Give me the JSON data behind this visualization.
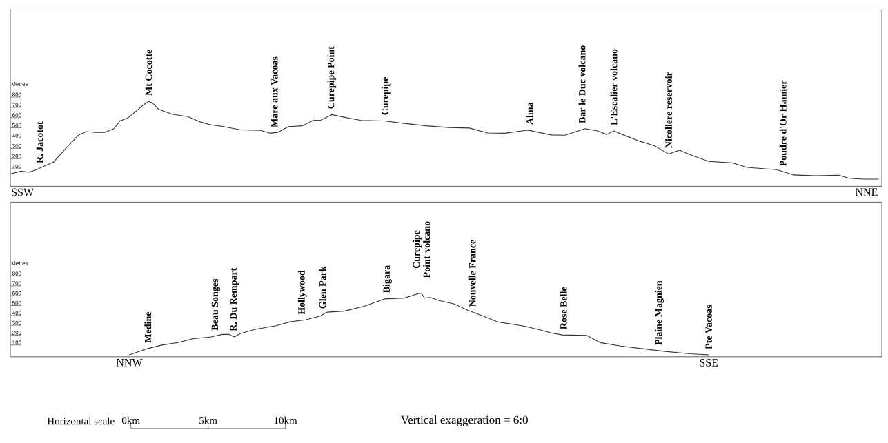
{
  "chart_data": [
    {
      "type": "line",
      "color": "#333333",
      "ylabel": "Metres",
      "ylim": [
        -70,
        1650
      ],
      "yticks": [
        100,
        200,
        300,
        400,
        500,
        600,
        700,
        800
      ],
      "xlim": [
        -7.8,
        48.6
      ],
      "tick_labels": "y",
      "x": [
        -7.8,
        -7.1,
        -6.6,
        -6.1,
        -5.5,
        -5.0,
        -4.2,
        -3.4,
        -2.9,
        -2.3,
        -1.7,
        -1.1,
        -0.7,
        -0.2,
        0.4,
        0.8,
        1.15,
        1.4,
        1.8,
        2.7,
        3.7,
        4.4,
        5.1,
        6.0,
        7.1,
        8.4,
        9.0,
        9.5,
        10.2,
        11.1,
        11.8,
        12.3,
        13.0,
        13.8,
        14.9,
        16.4,
        17.6,
        19.1,
        20.6,
        21.9,
        23.1,
        24.2,
        25.7,
        27.2,
        28.1,
        29.4,
        30.2,
        30.8,
        31.25,
        31.8,
        32.9,
        33.9,
        34.8,
        35.5,
        36.3,
        37.4,
        38.9,
        39.9,
        41.8,
        42.9,
        44.3,
        45.8,
        46.5,
        47.4,
        48.4
      ],
      "values": [
        50,
        78,
        67,
        92,
        134,
        167,
        302,
        428,
        464,
        456,
        456,
        492,
        568,
        596,
        671,
        722,
        758,
        744,
        680,
        632,
        610,
        562,
        532,
        512,
        481,
        475,
        448,
        456,
        512,
        520,
        573,
        576,
        629,
        604,
        573,
        568,
        545,
        520,
        503,
        498,
        450,
        448,
        478,
        431,
        428,
        492,
        470,
        436,
        470,
        436,
        372,
        324,
        246,
        282,
        232,
        173,
        159,
        114,
        92,
        41,
        33,
        38,
        8,
        0,
        0
      ],
      "annotations": [
        {
          "text": "R. Jacotot",
          "x": -5.9,
          "y": 100
        },
        {
          "text": "Mt Cocotte",
          "x": 1.15,
          "y": 758
        },
        {
          "text": "Mare aux Vacoas",
          "x": 9.3,
          "y": 450
        },
        {
          "text": "Curepipe Point",
          "x": 13.0,
          "y": 629
        },
        {
          "text": "Curepipe",
          "x": 16.5,
          "y": 568
        },
        {
          "text": "Alma",
          "x": 25.8,
          "y": 475
        },
        {
          "text": "Bar le Duc volcano",
          "x": 29.2,
          "y": 490
        },
        {
          "text": "L'Escalier volcano",
          "x": 31.25,
          "y": 470
        },
        {
          "text": "Nicoliere reservoir",
          "x": 34.8,
          "y": 246
        },
        {
          "text": "Poudre d'Or Hamier",
          "x": 42.2,
          "y": 70
        },
        "SSW",
        "NNE"
      ]
    },
    {
      "type": "line",
      "color": "#333333",
      "ylabel": "Metres",
      "xlabel": "Horizontal scale",
      "ylim": [
        -20,
        1550
      ],
      "yticks": [
        100,
        200,
        300,
        400,
        500,
        600,
        700,
        800
      ],
      "xlim": [
        -7.8,
        48.6
      ],
      "xticks": [
        {
          "value": 0,
          "label": "0km"
        },
        {
          "value": 5,
          "label": "5km"
        },
        {
          "value": 10,
          "label": "10km"
        }
      ],
      "x": [
        -0.1,
        1.1,
        2.0,
        3.0,
        4.0,
        5.2,
        5.9,
        6.35,
        6.7,
        7.1,
        8.1,
        9.4,
        10.3,
        11.3,
        12.25,
        12.7,
        13.8,
        15.1,
        16.4,
        17.7,
        18.6,
        18.8,
        19.0,
        19.4,
        19.9,
        20.9,
        21.8,
        22.8,
        23.7,
        25.3,
        26.3,
        27.2,
        27.9,
        29.5,
        30.4,
        31.7,
        33.0,
        34.6,
        36.2,
        37.4
      ],
      "values": [
        0,
        64,
        99,
        123,
        163,
        182,
        207,
        207,
        182,
        217,
        261,
        296,
        335,
        355,
        394,
        433,
        443,
        493,
        567,
        576,
        621,
        626,
        576,
        581,
        552,
        517,
        453,
        394,
        335,
        296,
        261,
        222,
        202,
        197,
        123,
        89,
        64,
        34,
        10,
        0
      ],
      "annotations": [
        {
          "text": "Medine",
          "x": 1.1,
          "y": 64
        },
        {
          "text": "Beau Songes",
          "x": 5.5,
          "y": 190
        },
        {
          "text": "R. Du Rempart",
          "x": 6.7,
          "y": 182
        },
        {
          "text": "Hollywood",
          "x": 11.1,
          "y": 350
        },
        {
          "text": "Glen Park",
          "x": 12.4,
          "y": 410
        },
        {
          "text": "Bigara",
          "x": 16.6,
          "y": 570
        },
        {
          "text": "Curepipe Point volcano",
          "x": 18.8,
          "y": 626
        },
        {
          "text": "Nouvelle France",
          "x": 22.1,
          "y": 430
        },
        {
          "text": "Rose Belle",
          "x": 28.0,
          "y": 200
        },
        {
          "text": "Plaine Magnien",
          "x": 34.2,
          "y": 40
        },
        {
          "text": "Pte Vacoas",
          "x": 37.4,
          "y": 0
        },
        "NNW",
        "SSE",
        "Vertical exaggeration = 6:0"
      ]
    }
  ]
}
